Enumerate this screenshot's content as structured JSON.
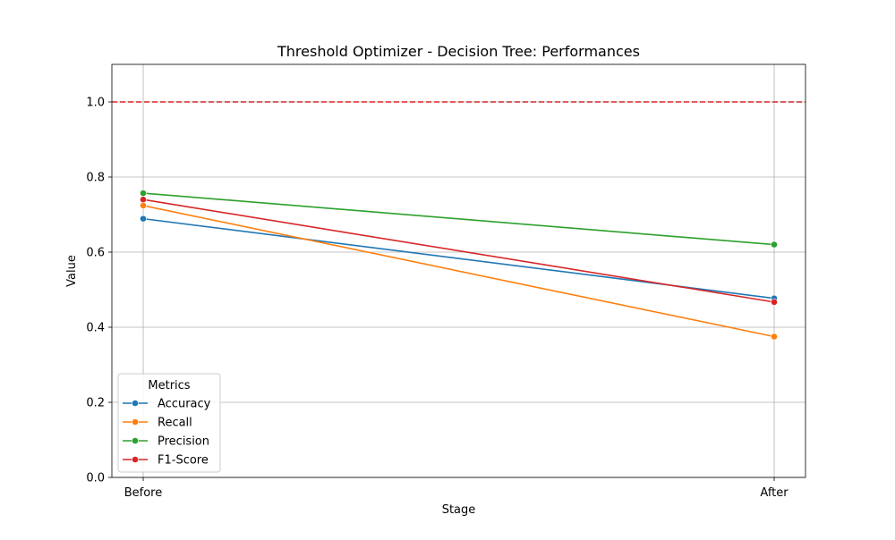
{
  "chart_data": {
    "type": "line",
    "title": "Threshold Optimizer - Decision Tree: Performances",
    "xlabel": "Stage",
    "ylabel": "Value",
    "categories": [
      "Before",
      "After"
    ],
    "ylim": [
      0,
      1.1
    ],
    "yticks": [
      0.0,
      0.2,
      0.4,
      0.6,
      0.8,
      1.0
    ],
    "ytick_labels": [
      "0.0",
      "0.2",
      "0.4",
      "0.6",
      "0.8",
      "1.0"
    ],
    "grid": true,
    "reference_line": {
      "y": 1.0,
      "color": "#d62728",
      "style": "dashed"
    },
    "legend": {
      "title": "Metrics",
      "placement": "lower-left"
    },
    "series": [
      {
        "name": "Accuracy",
        "color": "#1f77b4",
        "values": [
          0.689,
          0.477
        ]
      },
      {
        "name": "Recall",
        "color": "#ff7f0e",
        "values": [
          0.724,
          0.375
        ]
      },
      {
        "name": "Precision",
        "color": "#2ca02c",
        "values": [
          0.757,
          0.62
        ]
      },
      {
        "name": "F1-Score",
        "color": "#d62728",
        "values": [
          0.74,
          0.467
        ]
      }
    ]
  }
}
